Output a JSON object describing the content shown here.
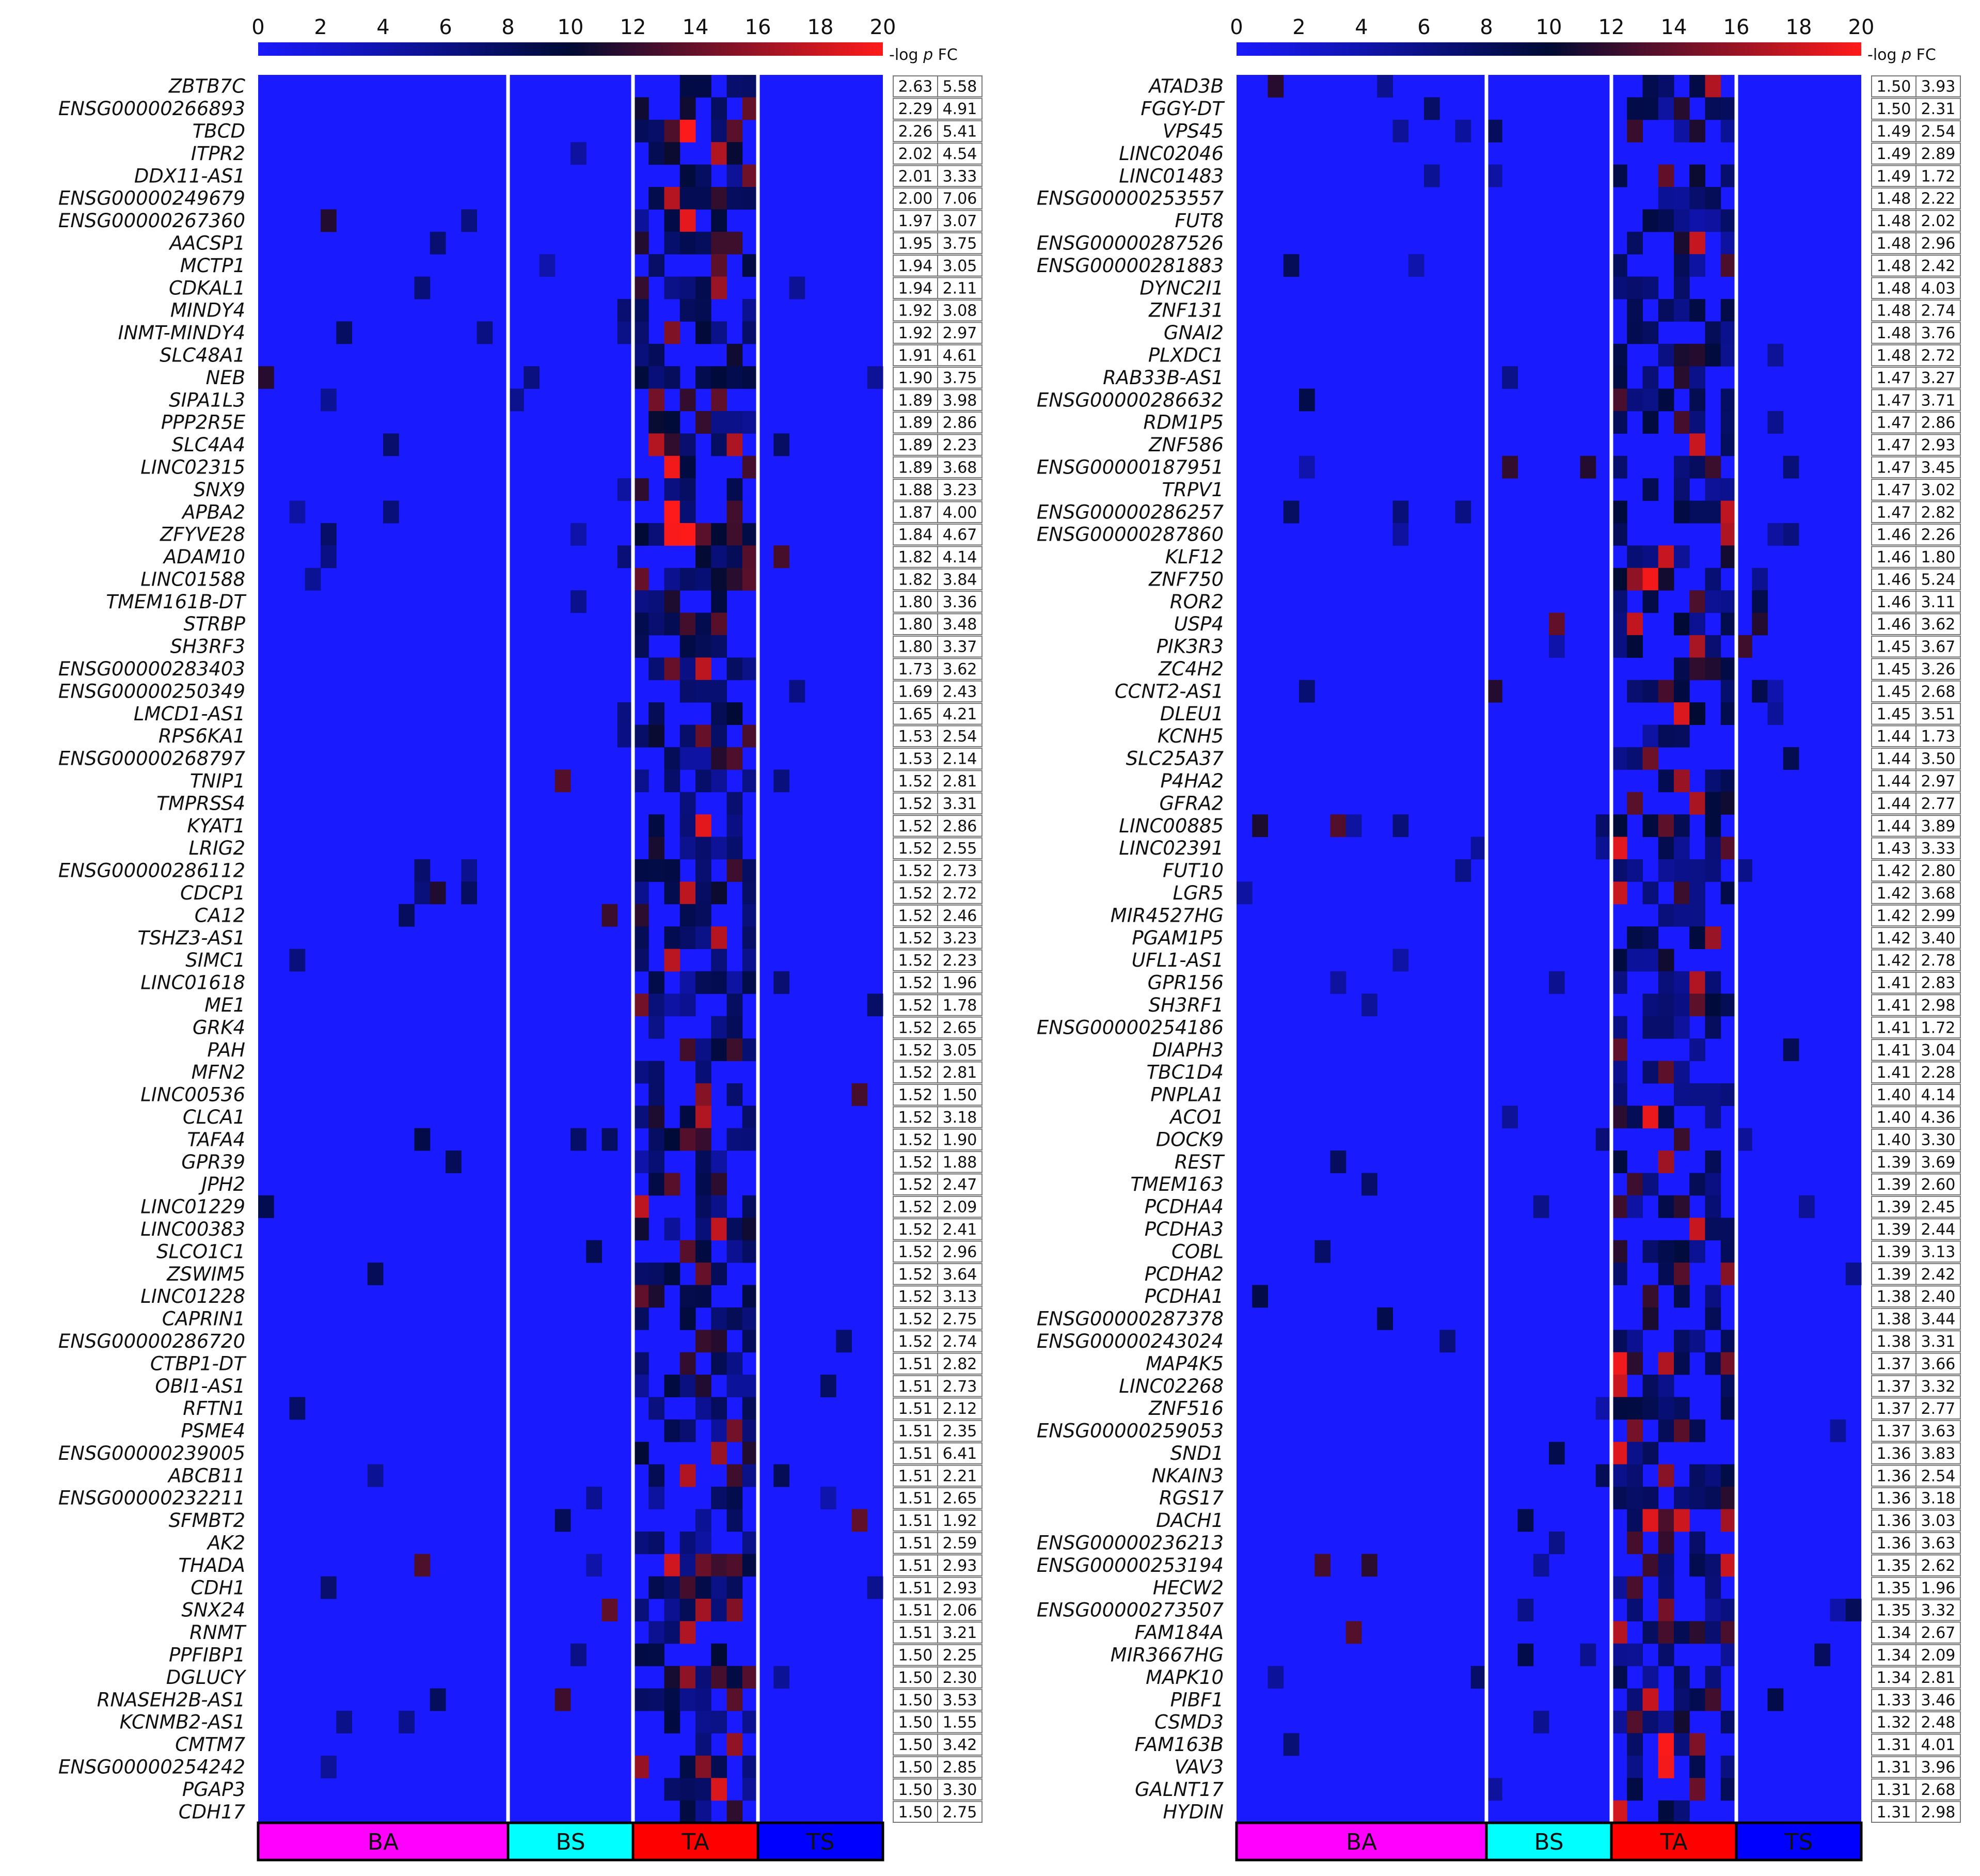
{
  "chart_data": [
    {
      "type": "heatmap",
      "panel": "left",
      "colorbar": {
        "ticks": [
          0,
          2,
          4,
          6,
          8,
          10,
          12,
          14,
          16,
          18,
          20
        ],
        "range": [
          0,
          20
        ],
        "colors": [
          "#1a1aff",
          "#000a33",
          "#ff1a1a"
        ],
        "label_prefix": "-log ",
        "label_var": "p",
        "label_suffix": " FC"
      },
      "groups": [
        {
          "label": "BA",
          "columns": 16,
          "color": "#ff00ff"
        },
        {
          "label": "BS",
          "columns": 8,
          "color": "#00ffff"
        },
        {
          "label": "TA",
          "columns": 8,
          "color": "#ff0000"
        },
        {
          "label": "TS",
          "columns": 8,
          "color": "#0000ff"
        }
      ],
      "genes": [
        "ZBTB7C",
        "ENSG00000266893",
        "TBCD",
        "ITPR2",
        "DDX11-AS1",
        "ENSG00000249679",
        "ENSG00000267360",
        "AACSP1",
        "MCTP1",
        "CDKAL1",
        "MINDY4",
        "INMT-MINDY4",
        "SLC48A1",
        "NEB",
        "SIPA1L3",
        "PPP2R5E",
        "SLC4A4",
        "LINC02315",
        "SNX9",
        "APBA2",
        "ZFYVE28",
        "ADAM10",
        "LINC01588",
        "TMEM161B-DT",
        "STRBP",
        "SH3RF3",
        "ENSG00000283403",
        "ENSG00000250349",
        "LMCD1-AS1",
        "RPS6KA1",
        "ENSG00000268797",
        "TNIP1",
        "TMPRSS4",
        "KYAT1",
        "LRIG2",
        "ENSG00000286112",
        "CDCP1",
        "CA12",
        "TSHZ3-AS1",
        "SIMC1",
        "LINC01618",
        "ME1",
        "GRK4",
        "PAH",
        "MFN2",
        "LINC00536",
        "CLCA1",
        "TAFA4",
        "GPR39",
        "JPH2",
        "LINC01229",
        "LINC00383",
        "SLCO1C1",
        "ZSWIM5",
        "LINC01228",
        "CAPRIN1",
        "ENSG00000286720",
        "CTBP1-DT",
        "OBI1-AS1",
        "RFTN1",
        "PSME4",
        "ENSG00000239005",
        "ABCB11",
        "ENSG00000232211",
        "SFMBT2",
        "AK2",
        "THADA",
        "CDH1",
        "SNX24",
        "RNMT",
        "PPFIBP1",
        "DGLUCY",
        "RNASEH2B-AS1",
        "KCNMB2-AS1",
        "CMTM7",
        "ENSG00000254242",
        "PGAP3",
        "CDH17"
      ],
      "neglogp": [
        "2.63",
        "2.29",
        "2.26",
        "2.02",
        "2.01",
        "2.00",
        "1.97",
        "1.95",
        "1.94",
        "1.94",
        "1.92",
        "1.92",
        "1.91",
        "1.90",
        "1.89",
        "1.89",
        "1.89",
        "1.89",
        "1.88",
        "1.87",
        "1.84",
        "1.82",
        "1.82",
        "1.80",
        "1.80",
        "1.80",
        "1.73",
        "1.69",
        "1.65",
        "1.53",
        "1.53",
        "1.52",
        "1.52",
        "1.52",
        "1.52",
        "1.52",
        "1.52",
        "1.52",
        "1.52",
        "1.52",
        "1.52",
        "1.52",
        "1.52",
        "1.52",
        "1.52",
        "1.52",
        "1.52",
        "1.52",
        "1.52",
        "1.52",
        "1.52",
        "1.52",
        "1.52",
        "1.52",
        "1.52",
        "1.52",
        "1.52",
        "1.51",
        "1.51",
        "1.51",
        "1.51",
        "1.51",
        "1.51",
        "1.51",
        "1.51",
        "1.51",
        "1.51",
        "1.51",
        "1.51",
        "1.51",
        "1.50",
        "1.50",
        "1.50",
        "1.50",
        "1.50",
        "1.50",
        "1.50",
        "1.50"
      ],
      "fc": [
        "5.58",
        "4.91",
        "5.41",
        "4.54",
        "3.33",
        "7.06",
        "3.07",
        "3.75",
        "3.05",
        "2.11",
        "3.08",
        "2.97",
        "4.61",
        "3.75",
        "3.98",
        "2.86",
        "2.23",
        "3.68",
        "3.23",
        "4.00",
        "4.67",
        "4.14",
        "3.84",
        "3.36",
        "3.48",
        "3.37",
        "3.62",
        "2.43",
        "4.21",
        "2.54",
        "2.14",
        "2.81",
        "3.31",
        "2.86",
        "2.55",
        "2.73",
        "2.72",
        "2.46",
        "3.23",
        "2.23",
        "1.96",
        "1.78",
        "2.65",
        "3.05",
        "2.81",
        "1.50",
        "3.18",
        "1.90",
        "1.88",
        "2.47",
        "2.09",
        "2.41",
        "2.96",
        "3.64",
        "3.13",
        "2.75",
        "2.74",
        "2.82",
        "2.73",
        "2.12",
        "2.35",
        "6.41",
        "2.21",
        "2.65",
        "1.92",
        "2.59",
        "2.93",
        "2.93",
        "2.06",
        "3.21",
        "2.25",
        "2.30",
        "3.53",
        "1.55",
        "3.42",
        "2.85",
        "3.30",
        "2.75"
      ]
    },
    {
      "type": "heatmap",
      "panel": "right",
      "colorbar": {
        "ticks": [
          0,
          2,
          4,
          6,
          8,
          10,
          12,
          14,
          16,
          18,
          20
        ],
        "range": [
          0,
          20
        ],
        "colors": [
          "#1a1aff",
          "#000a33",
          "#ff1a1a"
        ],
        "label_prefix": "-log ",
        "label_var": "p",
        "label_suffix": " FC"
      },
      "groups": [
        {
          "label": "BA",
          "columns": 16,
          "color": "#ff00ff"
        },
        {
          "label": "BS",
          "columns": 8,
          "color": "#00ffff"
        },
        {
          "label": "TA",
          "columns": 8,
          "color": "#ff0000"
        },
        {
          "label": "TS",
          "columns": 8,
          "color": "#0000ff"
        }
      ],
      "genes": [
        "ATAD3B",
        "FGGY-DT",
        "VPS45",
        "LINC02046",
        "LINC01483",
        "ENSG00000253557",
        "FUT8",
        "ENSG00000287526",
        "ENSG00000281883",
        "DYNC2I1",
        "ZNF131",
        "GNAI2",
        "PLXDC1",
        "RAB33B-AS1",
        "ENSG00000286632",
        "RDM1P5",
        "ZNF586",
        "ENSG00000187951",
        "TRPV1",
        "ENSG00000286257",
        "ENSG00000287860",
        "KLF12",
        "ZNF750",
        "ROR2",
        "USP4",
        "PIK3R3",
        "ZC4H2",
        "CCNT2-AS1",
        "DLEU1",
        "KCNH5",
        "SLC25A37",
        "P4HA2",
        "GFRA2",
        "LINC00885",
        "LINC02391",
        "FUT10",
        "LGR5",
        "MIR4527HG",
        "PGAM1P5",
        "UFL1-AS1",
        "GPR156",
        "SH3RF1",
        "ENSG00000254186",
        "DIAPH3",
        "TBC1D4",
        "PNPLA1",
        "ACO1",
        "DOCK9",
        "REST",
        "TMEM163",
        "PCDHA4",
        "PCDHA3",
        "COBL",
        "PCDHA2",
        "PCDHA1",
        "ENSG00000287378",
        "ENSG00000243024",
        "MAP4K5",
        "LINC02268",
        "ZNF516",
        "ENSG00000259053",
        "SND1",
        "NKAIN3",
        "RGS17",
        "DACH1",
        "ENSG00000236213",
        "ENSG00000253194",
        "HECW2",
        "ENSG00000273507",
        "FAM184A",
        "MIR3667HG",
        "MAPK10",
        "PIBF1",
        "CSMD3",
        "FAM163B",
        "VAV3",
        "GALNT17",
        "HYDIN"
      ],
      "neglogp": [
        "1.50",
        "1.50",
        "1.49",
        "1.49",
        "1.49",
        "1.48",
        "1.48",
        "1.48",
        "1.48",
        "1.48",
        "1.48",
        "1.48",
        "1.48",
        "1.47",
        "1.47",
        "1.47",
        "1.47",
        "1.47",
        "1.47",
        "1.47",
        "1.46",
        "1.46",
        "1.46",
        "1.46",
        "1.46",
        "1.45",
        "1.45",
        "1.45",
        "1.45",
        "1.44",
        "1.44",
        "1.44",
        "1.44",
        "1.44",
        "1.43",
        "1.42",
        "1.42",
        "1.42",
        "1.42",
        "1.42",
        "1.41",
        "1.41",
        "1.41",
        "1.41",
        "1.41",
        "1.40",
        "1.40",
        "1.40",
        "1.39",
        "1.39",
        "1.39",
        "1.39",
        "1.39",
        "1.39",
        "1.38",
        "1.38",
        "1.38",
        "1.37",
        "1.37",
        "1.37",
        "1.37",
        "1.36",
        "1.36",
        "1.36",
        "1.36",
        "1.36",
        "1.35",
        "1.35",
        "1.35",
        "1.34",
        "1.34",
        "1.34",
        "1.33",
        "1.32",
        "1.31",
        "1.31",
        "1.31",
        "1.31"
      ],
      "fc": [
        "3.93",
        "2.31",
        "2.54",
        "2.89",
        "1.72",
        "2.22",
        "2.02",
        "2.96",
        "2.42",
        "4.03",
        "2.74",
        "3.76",
        "2.72",
        "3.27",
        "3.71",
        "2.86",
        "2.93",
        "3.45",
        "3.02",
        "2.82",
        "2.26",
        "1.80",
        "5.24",
        "3.11",
        "3.62",
        "3.67",
        "3.26",
        "2.68",
        "3.51",
        "1.73",
        "3.50",
        "2.97",
        "2.77",
        "3.89",
        "3.33",
        "2.80",
        "3.68",
        "2.99",
        "3.40",
        "2.78",
        "2.83",
        "2.98",
        "1.72",
        "3.04",
        "2.28",
        "4.14",
        "4.36",
        "3.30",
        "3.69",
        "2.60",
        "2.45",
        "2.44",
        "3.13",
        "2.42",
        "2.40",
        "3.44",
        "3.31",
        "3.66",
        "3.32",
        "2.77",
        "3.63",
        "3.83",
        "2.54",
        "3.18",
        "3.03",
        "3.63",
        "2.62",
        "1.96",
        "3.32",
        "2.67",
        "2.09",
        "2.81",
        "3.46",
        "2.48",
        "4.01",
        "3.96",
        "2.68",
        "2.98"
      ]
    }
  ]
}
